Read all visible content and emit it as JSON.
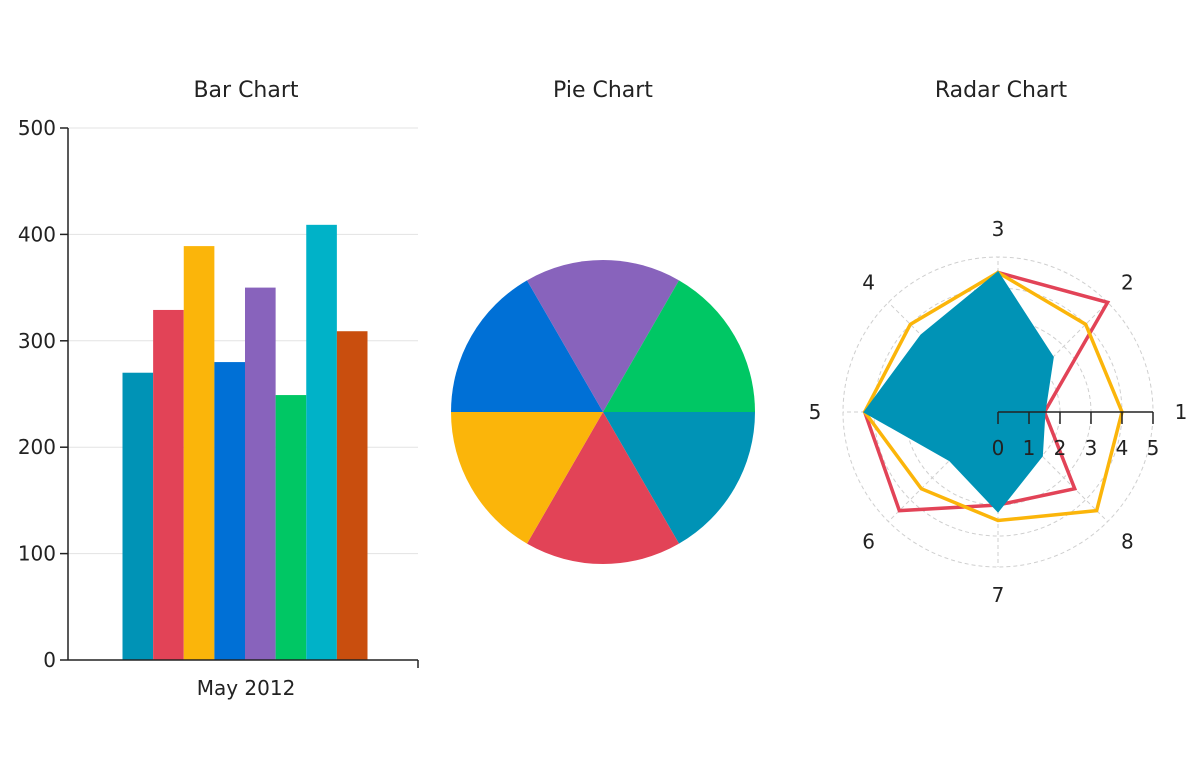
{
  "chart_data": [
    {
      "type": "bar",
      "title": "Bar Chart",
      "categories": [
        "May 2012"
      ],
      "series": [
        {
          "values": [
            270
          ],
          "color": "#0093b6"
        },
        {
          "values": [
            329
          ],
          "color": "#e24357"
        },
        {
          "values": [
            389
          ],
          "color": "#fbb50a"
        },
        {
          "values": [
            280
          ],
          "color": "#0070d6"
        },
        {
          "values": [
            350
          ],
          "color": "#8863bc"
        },
        {
          "values": [
            249
          ],
          "color": "#00c764"
        },
        {
          "values": [
            409
          ],
          "color": "#00b2c8"
        },
        {
          "values": [
            309
          ],
          "color": "#c94e0e"
        }
      ],
      "yticks": [
        "0",
        "100",
        "200",
        "300",
        "400",
        "500"
      ],
      "ylim": [
        0,
        500
      ],
      "grid": true
    },
    {
      "type": "pie",
      "title": "Pie Chart",
      "slices": [
        {
          "value": 1,
          "color": "#0093b6"
        },
        {
          "value": 1,
          "color": "#e24357"
        },
        {
          "value": 1,
          "color": "#fbb50a"
        },
        {
          "value": 1,
          "color": "#0070d6"
        },
        {
          "value": 1,
          "color": "#8863bc"
        },
        {
          "value": 1,
          "color": "#00c764"
        }
      ]
    },
    {
      "type": "radar",
      "title": "Radar Chart",
      "categories": [
        "1",
        "2",
        "3",
        "4",
        "5",
        "6",
        "7",
        "8"
      ],
      "rticks": [
        "0",
        "1",
        "2",
        "3",
        "4",
        "5"
      ],
      "rlim": [
        0,
        5
      ],
      "series": [
        {
          "color": "#0093b6",
          "style": "area",
          "values": [
            1.5,
            2.5,
            4.5,
            3.5,
            4.3,
            2.2,
            3.2,
            2.0
          ]
        },
        {
          "color": "#e24357",
          "style": "line",
          "values": [
            1.5,
            5.0,
            4.5,
            3.0,
            4.3,
            4.5,
            3.0,
            3.5
          ]
        },
        {
          "color": "#fbb50a",
          "style": "line",
          "values": [
            4.0,
            4.0,
            4.5,
            4.0,
            4.3,
            3.5,
            3.5,
            4.5
          ]
        }
      ]
    }
  ]
}
